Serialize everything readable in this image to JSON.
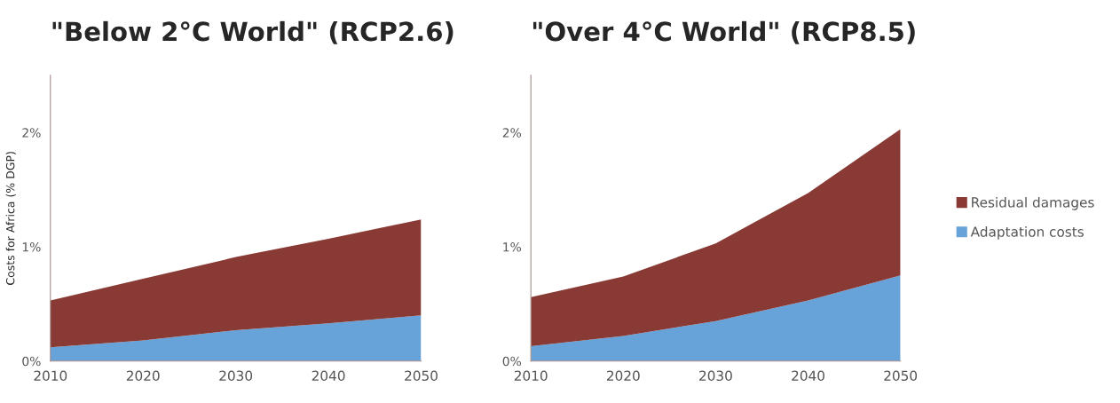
{
  "chart_data": [
    {
      "type": "area",
      "title": "\"Below 2°C World\" (RCP2.6)",
      "ylabel": "Costs for Africa (% DGP)",
      "stacked": true,
      "grid": false,
      "legend": false,
      "x": [
        2010,
        2020,
        2030,
        2040,
        2050
      ],
      "xlim": [
        2010,
        2050
      ],
      "xticks": [
        2010,
        2020,
        2030,
        2040,
        2050
      ],
      "ylim": [
        0,
        2.5
      ],
      "yticks": [
        {
          "value": 0,
          "label": "0%"
        },
        {
          "value": 1,
          "label": "1%"
        },
        {
          "value": 2,
          "label": "2%"
        }
      ],
      "series": [
        {
          "color": "#67a2d8",
          "values": [
            0.12,
            0.18,
            0.27,
            0.33,
            0.4
          ]
        },
        {
          "color": "#893a35",
          "values": [
            0.41,
            0.54,
            0.64,
            0.74,
            0.84
          ]
        }
      ]
    },
    {
      "type": "area",
      "title": "\"Over 4°C World\" (RCP8.5)",
      "stacked": true,
      "grid": false,
      "legend": "right",
      "x": [
        2010,
        2020,
        2030,
        2040,
        2050
      ],
      "xlim": [
        2010,
        2050
      ],
      "xticks": [
        2010,
        2020,
        2030,
        2040,
        2050
      ],
      "ylim": [
        0,
        2.5
      ],
      "yticks": [
        {
          "value": 0,
          "label": "0%"
        },
        {
          "value": 1,
          "label": "1%"
        },
        {
          "value": 2,
          "label": "2%"
        }
      ],
      "series": [
        {
          "name": "Adaptation costs",
          "color": "#67a2d8",
          "values": [
            0.13,
            0.22,
            0.35,
            0.53,
            0.75
          ]
        },
        {
          "name": "Residual damages",
          "color": "#893a35",
          "values": [
            0.43,
            0.52,
            0.68,
            0.94,
            1.28
          ]
        }
      ]
    }
  ]
}
